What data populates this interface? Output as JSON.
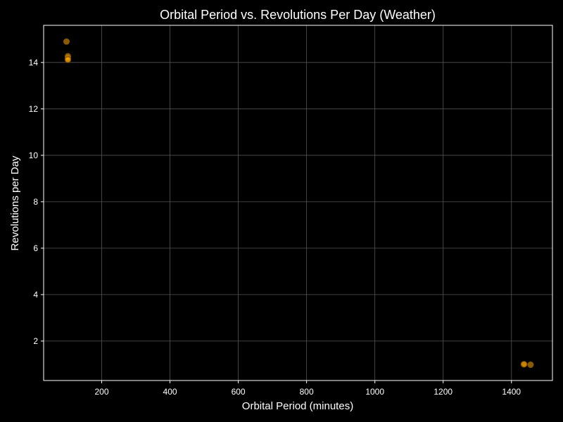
{
  "chart_data": {
    "type": "scatter",
    "title": "Orbital Period vs. Revolutions Per Day (Weather)",
    "xlabel": "Orbital Period (minutes)",
    "ylabel": "Revolutions per Day",
    "xlim": [
      30,
      1520
    ],
    "ylim": [
      0.3,
      15.6
    ],
    "xticks": [
      200,
      400,
      600,
      800,
      1000,
      1200,
      1400
    ],
    "yticks": [
      2,
      4,
      6,
      8,
      10,
      12,
      14
    ],
    "grid": true,
    "series": [
      {
        "points": [
          {
            "x": 97,
            "y": 14.9
          },
          {
            "x": 101,
            "y": 14.27
          },
          {
            "x": 101,
            "y": 14.22
          },
          {
            "x": 101,
            "y": 14.15
          },
          {
            "x": 101,
            "y": 14.12
          },
          {
            "x": 1436,
            "y": 1.0
          },
          {
            "x": 1437,
            "y": 1.0
          },
          {
            "x": 1456,
            "y": 0.98
          }
        ]
      }
    ],
    "colors": {
      "background": "#000000",
      "axes": "#ffffff",
      "grid": "#555555",
      "marker_fill": "#ffa500",
      "marker_edge": "#8a5a00"
    }
  }
}
